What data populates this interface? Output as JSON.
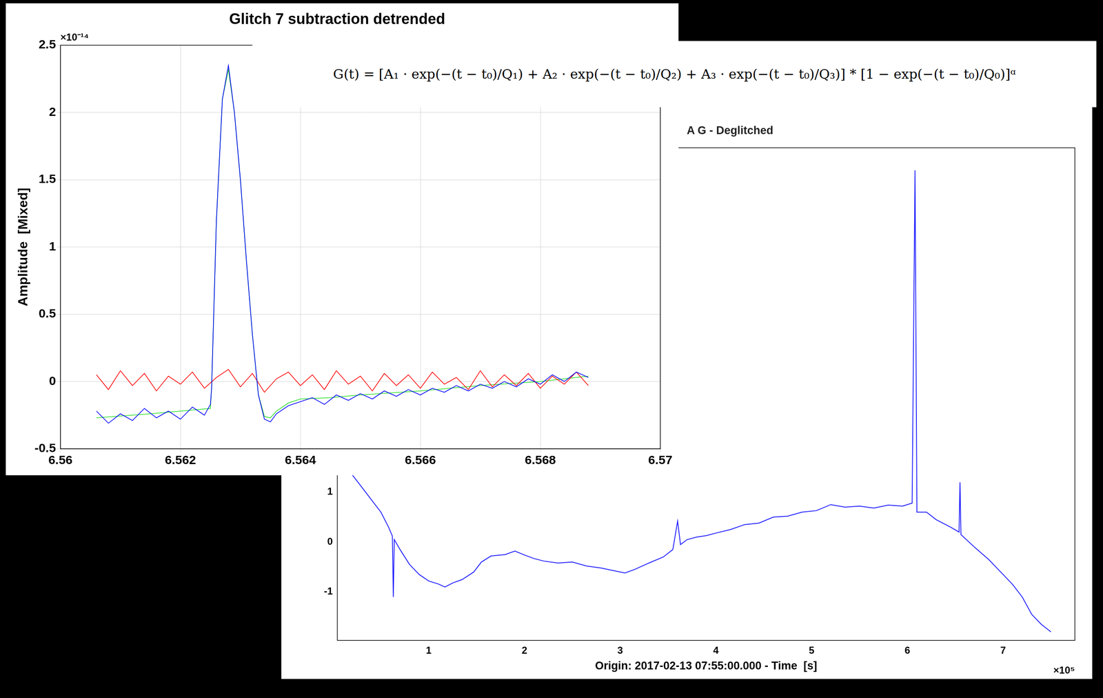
{
  "chart_data": [
    {
      "type": "line",
      "title": "Glitch 7 subtraction detrended",
      "y_label": "Amplitude  [Mixed]",
      "annotations": [
        "×10⁻¹⁴"
      ],
      "xlim": [
        6.56,
        6.57
      ],
      "xticks": [
        6.56,
        6.562,
        6.564,
        6.566,
        6.568,
        6.57
      ],
      "ylim": [
        -0.5,
        2.5
      ],
      "yticks": [
        -0.5,
        0,
        0.5,
        1,
        1.5,
        2,
        2.5
      ],
      "grid": true,
      "series": [
        {
          "color": "#0000ff",
          "x": [
            6.5606,
            6.5608,
            6.561,
            6.5612,
            6.5614,
            6.5616,
            6.5618,
            6.562,
            6.5622,
            6.5624,
            6.5625,
            6.56252,
            6.5626,
            6.5627,
            6.5628,
            6.5629,
            6.563,
            6.5631,
            6.5632,
            6.5633,
            6.5634,
            6.5635,
            6.5636,
            6.5638,
            6.564,
            6.5642,
            6.5644,
            6.5646,
            6.5648,
            6.565,
            6.5652,
            6.5654,
            6.5656,
            6.5658,
            6.566,
            6.5662,
            6.5664,
            6.5666,
            6.5668,
            6.567,
            6.5672,
            6.5674,
            6.5676,
            6.5678,
            6.568,
            6.5682,
            6.5684,
            6.5686,
            6.5688
          ],
          "values": [
            -0.22,
            -0.31,
            -0.24,
            -0.29,
            -0.2,
            -0.27,
            -0.22,
            -0.28,
            -0.19,
            -0.25,
            -0.17,
            -0.05,
            1.2,
            2.1,
            2.35,
            2.0,
            1.5,
            0.9,
            0.35,
            -0.1,
            -0.28,
            -0.3,
            -0.24,
            -0.18,
            -0.15,
            -0.12,
            -0.17,
            -0.1,
            -0.14,
            -0.09,
            -0.13,
            -0.07,
            -0.11,
            -0.06,
            -0.1,
            -0.05,
            -0.08,
            -0.03,
            -0.07,
            -0.02,
            -0.05,
            0.0,
            -0.04,
            0.02,
            -0.02,
            0.05,
            0.0,
            0.07,
            0.03
          ]
        },
        {
          "color": "#ff0000",
          "x": [
            6.5606,
            6.5608,
            6.561,
            6.5612,
            6.5614,
            6.5616,
            6.5618,
            6.562,
            6.5622,
            6.5624,
            6.5626,
            6.5628,
            6.563,
            6.5632,
            6.5634,
            6.5636,
            6.5638,
            6.564,
            6.5642,
            6.5644,
            6.5646,
            6.5648,
            6.565,
            6.5652,
            6.5654,
            6.5656,
            6.5658,
            6.566,
            6.5662,
            6.5664,
            6.5666,
            6.5668,
            6.567,
            6.5672,
            6.5674,
            6.5676,
            6.5678,
            6.568,
            6.5682,
            6.5684,
            6.5686,
            6.5688
          ],
          "values": [
            0.05,
            -0.06,
            0.08,
            -0.03,
            0.06,
            -0.07,
            0.04,
            -0.02,
            0.07,
            -0.05,
            0.03,
            0.09,
            -0.04,
            0.06,
            -0.08,
            0.02,
            0.07,
            -0.03,
            0.05,
            -0.06,
            0.08,
            -0.02,
            0.04,
            -0.07,
            0.06,
            -0.03,
            0.05,
            -0.05,
            0.07,
            -0.02,
            0.03,
            -0.06,
            0.08,
            -0.04,
            0.05,
            -0.03,
            0.06,
            -0.05,
            0.04,
            -0.02,
            0.07,
            -0.03
          ]
        },
        {
          "color": "#22dd22",
          "x": [
            6.5606,
            6.5615,
            6.5625,
            6.56252,
            6.5626,
            6.5627,
            6.5628,
            6.5629,
            6.563,
            6.5631,
            6.5632,
            6.5633,
            6.5634,
            6.5635,
            6.5636,
            6.5638,
            6.564,
            6.5645,
            6.565,
            6.566,
            6.567,
            6.568,
            6.5688
          ],
          "values": [
            -0.27,
            -0.24,
            -0.2,
            -0.05,
            1.2,
            2.1,
            2.32,
            2.0,
            1.5,
            0.9,
            0.35,
            -0.1,
            -0.26,
            -0.27,
            -0.22,
            -0.16,
            -0.13,
            -0.12,
            -0.1,
            -0.07,
            -0.03,
            0.0,
            0.04
          ]
        }
      ]
    },
    {
      "type": "line",
      "title": "A G - Deglitched",
      "x_label": "Origin: 2017-02-13 07:55:00.000 - Time  [s]",
      "annotations": [
        "×10⁵"
      ],
      "xlim": [
        0.045,
        7.75
      ],
      "xticks": [
        1,
        2,
        3,
        4,
        5,
        6,
        7
      ],
      "ylim": [
        -1.97,
        7.9
      ],
      "yticks": [
        -1,
        0,
        1
      ],
      "grid": false,
      "series": [
        {
          "color": "#1f1fff",
          "x": [
            0.2,
            0.3,
            0.4,
            0.5,
            0.58,
            0.62,
            0.63,
            0.64,
            0.7,
            0.8,
            0.9,
            1.0,
            1.1,
            1.17,
            1.25,
            1.35,
            1.47,
            1.55,
            1.65,
            1.8,
            1.9,
            2.0,
            2.1,
            2.2,
            2.35,
            2.5,
            2.65,
            2.8,
            2.95,
            3.05,
            3.15,
            3.3,
            3.45,
            3.55,
            3.6,
            3.63,
            3.7,
            3.8,
            3.9,
            4.0,
            4.15,
            4.3,
            4.45,
            4.6,
            4.75,
            4.9,
            5.05,
            5.2,
            5.35,
            5.5,
            5.65,
            5.8,
            5.95,
            6.05,
            6.08,
            6.1,
            6.2,
            6.3,
            6.45,
            6.54,
            6.55,
            6.56,
            6.7,
            6.85,
            7.0,
            7.1,
            7.2,
            7.3,
            7.4,
            7.5
          ],
          "values": [
            1.35,
            1.1,
            0.85,
            0.6,
            0.3,
            0.12,
            -1.1,
            0.05,
            -0.15,
            -0.45,
            -0.65,
            -0.78,
            -0.84,
            -0.9,
            -0.82,
            -0.75,
            -0.6,
            -0.4,
            -0.28,
            -0.25,
            -0.18,
            -0.26,
            -0.33,
            -0.38,
            -0.42,
            -0.4,
            -0.48,
            -0.52,
            -0.58,
            -0.62,
            -0.55,
            -0.42,
            -0.3,
            -0.15,
            0.42,
            -0.05,
            0.05,
            0.1,
            0.13,
            0.18,
            0.25,
            0.35,
            0.38,
            0.5,
            0.52,
            0.6,
            0.63,
            0.75,
            0.7,
            0.72,
            0.68,
            0.74,
            0.72,
            0.78,
            7.45,
            0.6,
            0.6,
            0.45,
            0.3,
            0.2,
            1.2,
            0.15,
            -0.1,
            -0.35,
            -0.65,
            -0.85,
            -1.1,
            -1.45,
            -1.65,
            -1.8
          ]
        }
      ]
    }
  ],
  "annotation": "G(t) = [A₁ · exp(−(t − t₀)/Q₁) + A₂ · exp(−(t − t₀)/Q₂) + A₃ · exp(−(t − t₀)/Q₃)] * [1 − exp(−(t − t₀)/Q₀)]ᵅ"
}
